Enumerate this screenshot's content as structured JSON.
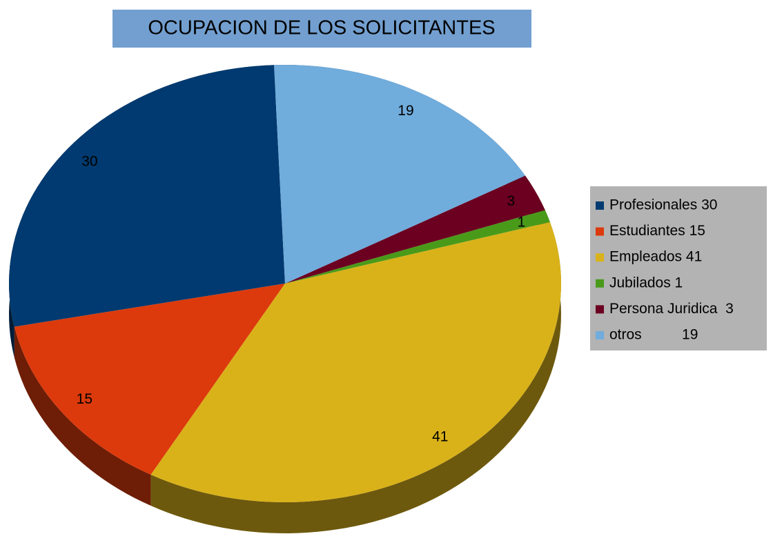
{
  "chart_data": {
    "type": "pie",
    "title": "OCUPACION DE LOS SOLICITANTES",
    "categories": [
      "Profesionales 30",
      "Estudiantes 15",
      "Empleados 41",
      "Jubilados 1",
      "Persona Juridica  3",
      "otros          19"
    ],
    "values": [
      30,
      15,
      41,
      1,
      3,
      19
    ],
    "colors": [
      "#003a70",
      "#dc3a0c",
      "#d9b21a",
      "#4a9a1a",
      "#6b0020",
      "#70acdc"
    ],
    "legend": "right",
    "three_d": true
  }
}
